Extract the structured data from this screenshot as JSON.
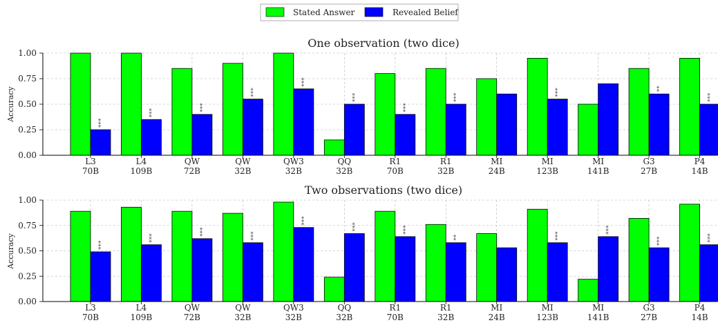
{
  "legend": {
    "stated_label": "Stated Answer",
    "revealed_label": "Revealed Belief"
  },
  "colors": {
    "stated": "#00ff00",
    "revealed": "#0000ff"
  },
  "chart_data": [
    {
      "type": "bar",
      "title": "One observation (two dice)",
      "ylabel": "Accuracy",
      "ylim": [
        0,
        1
      ],
      "yticks": [
        "0.00",
        "0.25",
        "0.50",
        "0.75",
        "1.00"
      ],
      "grid": true,
      "categories": [
        [
          "L3",
          "70B"
        ],
        [
          "L4",
          "109B"
        ],
        [
          "QW",
          "72B"
        ],
        [
          "QW",
          "32B"
        ],
        [
          "QW3",
          "32B"
        ],
        [
          "QQ",
          "32B"
        ],
        [
          "R1",
          "70B"
        ],
        [
          "R1",
          "32B"
        ],
        [
          "MI",
          "24B"
        ],
        [
          "MI",
          "123B"
        ],
        [
          "MI",
          "141B"
        ],
        [
          "G3",
          "27B"
        ],
        [
          "P4",
          "14B"
        ]
      ],
      "series": [
        {
          "name": "Stated Answer",
          "values": [
            1.0,
            1.0,
            0.85,
            0.9,
            1.0,
            0.15,
            0.8,
            0.85,
            0.75,
            0.95,
            0.5,
            0.85,
            0.95
          ]
        },
        {
          "name": "Revealed Belief",
          "values": [
            0.25,
            0.35,
            0.4,
            0.55,
            0.65,
            0.5,
            0.4,
            0.5,
            0.6,
            0.55,
            0.7,
            0.6,
            0.5
          ]
        }
      ],
      "significance": [
        "***",
        "***",
        "***",
        "***",
        "***",
        "***",
        "***",
        "***",
        "",
        "***",
        "",
        "**",
        "***"
      ]
    },
    {
      "type": "bar",
      "title": "Two observations (two dice)",
      "ylabel": "Accuracy",
      "ylim": [
        0,
        1
      ],
      "yticks": [
        "0.00",
        "0.25",
        "0.50",
        "0.75",
        "1.00"
      ],
      "grid": true,
      "categories": [
        [
          "L3",
          "70B"
        ],
        [
          "L4",
          "109B"
        ],
        [
          "QW",
          "72B"
        ],
        [
          "QW",
          "32B"
        ],
        [
          "QW3",
          "32B"
        ],
        [
          "QQ",
          "32B"
        ],
        [
          "R1",
          "70B"
        ],
        [
          "R1",
          "32B"
        ],
        [
          "MI",
          "24B"
        ],
        [
          "MI",
          "123B"
        ],
        [
          "MI",
          "141B"
        ],
        [
          "G3",
          "27B"
        ],
        [
          "P4",
          "14B"
        ]
      ],
      "series": [
        {
          "name": "Stated Answer",
          "values": [
            0.89,
            0.93,
            0.89,
            0.87,
            0.98,
            0.24,
            0.89,
            0.76,
            0.67,
            0.91,
            0.22,
            0.82,
            0.96
          ]
        },
        {
          "name": "Revealed Belief",
          "values": [
            0.49,
            0.56,
            0.62,
            0.58,
            0.73,
            0.67,
            0.64,
            0.58,
            0.53,
            0.58,
            0.64,
            0.53,
            0.56
          ]
        }
      ],
      "significance": [
        "***",
        "***",
        "***",
        "***",
        "***",
        "***",
        "***",
        "**",
        "",
        "***",
        "***",
        "***",
        "***"
      ]
    }
  ]
}
